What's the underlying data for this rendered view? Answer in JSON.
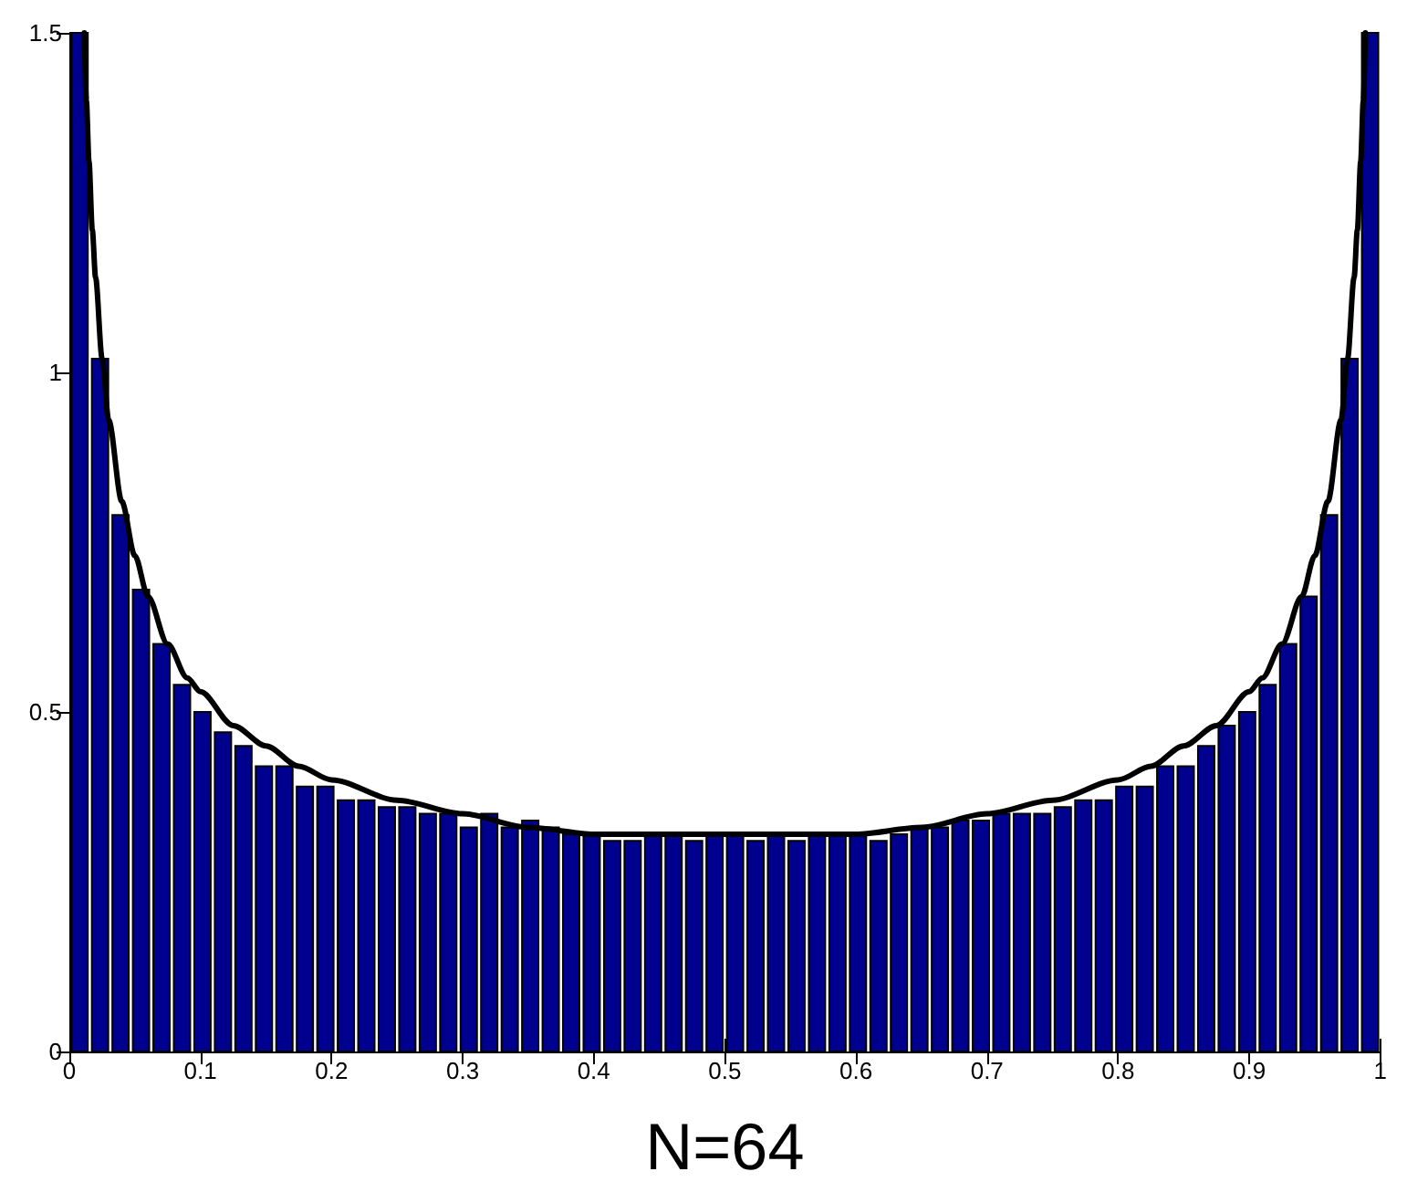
{
  "chart_data": {
    "type": "histogram",
    "xlabel": "N=64",
    "bins": [
      0,
      0.015625,
      0.03125,
      0.046875,
      0.0625,
      0.078125,
      0.09375,
      0.109375,
      0.125,
      0.140625,
      0.15625,
      0.171875,
      0.1875,
      0.203125,
      0.21875,
      0.234375,
      0.25,
      0.265625,
      0.28125,
      0.296875,
      0.3125,
      0.328125,
      0.34375,
      0.359375,
      0.375,
      0.390625,
      0.40625,
      0.421875,
      0.4375,
      0.453125,
      0.46875,
      0.484375,
      0.5,
      0.515625,
      0.53125,
      0.546875,
      0.5625,
      0.578125,
      0.59375,
      0.609375,
      0.625,
      0.640625,
      0.65625,
      0.671875,
      0.6875,
      0.703125,
      0.71875,
      0.734375,
      0.75,
      0.765625,
      0.78125,
      0.796875,
      0.8125,
      0.828125,
      0.84375,
      0.859375,
      0.875,
      0.890625,
      0.90625,
      0.921875,
      0.9375,
      0.953125,
      0.96875,
      0.984375,
      1
    ],
    "values": [
      1.5,
      1.02,
      0.79,
      0.68,
      0.6,
      0.54,
      0.5,
      0.47,
      0.45,
      0.42,
      0.42,
      0.39,
      0.39,
      0.37,
      0.37,
      0.36,
      0.36,
      0.35,
      0.35,
      0.33,
      0.35,
      0.33,
      0.34,
      0.33,
      0.32,
      0.32,
      0.31,
      0.31,
      0.32,
      0.32,
      0.31,
      0.32,
      0.32,
      0.31,
      0.32,
      0.31,
      0.32,
      0.32,
      0.32,
      0.31,
      0.32,
      0.33,
      0.33,
      0.34,
      0.34,
      0.35,
      0.35,
      0.35,
      0.36,
      0.37,
      0.37,
      0.39,
      0.39,
      0.42,
      0.42,
      0.45,
      0.48,
      0.5,
      0.54,
      0.6,
      0.67,
      0.79,
      1.02,
      1.5
    ],
    "color": "#00008f",
    "series": [
      {
        "type": "line",
        "color": "#000000",
        "x": [
          0.0114,
          0.013,
          0.015,
          0.0175,
          0.02,
          0.025,
          0.03,
          0.04,
          0.05,
          0.06,
          0.075,
          0.09,
          0.1,
          0.125,
          0.15,
          0.175,
          0.2,
          0.25,
          0.3,
          0.35,
          0.4,
          0.45,
          0.5,
          0.55,
          0.6,
          0.65,
          0.7,
          0.75,
          0.8,
          0.825,
          0.85,
          0.875,
          0.9,
          0.91,
          0.925,
          0.94,
          0.95,
          0.96,
          0.97,
          0.975,
          0.98,
          0.9825,
          0.985,
          0.987,
          0.9886
        ],
        "values": [
          1.5,
          1.4,
          1.31,
          1.21,
          1.14,
          1.02,
          0.93,
          0.81,
          0.73,
          0.67,
          0.6,
          0.55,
          0.53,
          0.48,
          0.45,
          0.42,
          0.4,
          0.37,
          0.35,
          0.33,
          0.32,
          0.32,
          0.32,
          0.32,
          0.32,
          0.33,
          0.35,
          0.37,
          0.4,
          0.42,
          0.45,
          0.48,
          0.53,
          0.55,
          0.6,
          0.67,
          0.73,
          0.81,
          0.93,
          1.02,
          1.14,
          1.21,
          1.31,
          1.4,
          1.5
        ]
      }
    ],
    "xlim": [
      0,
      1
    ],
    "xticks": [
      0,
      0.1,
      0.2,
      0.3,
      0.4,
      0.5,
      0.6,
      0.7,
      0.8,
      0.9,
      1
    ],
    "ylim": [
      0,
      1.5
    ],
    "yticks": [
      0,
      0.5,
      1,
      1.5
    ],
    "grid": false,
    "marker": "none",
    "line_style": "solid"
  }
}
